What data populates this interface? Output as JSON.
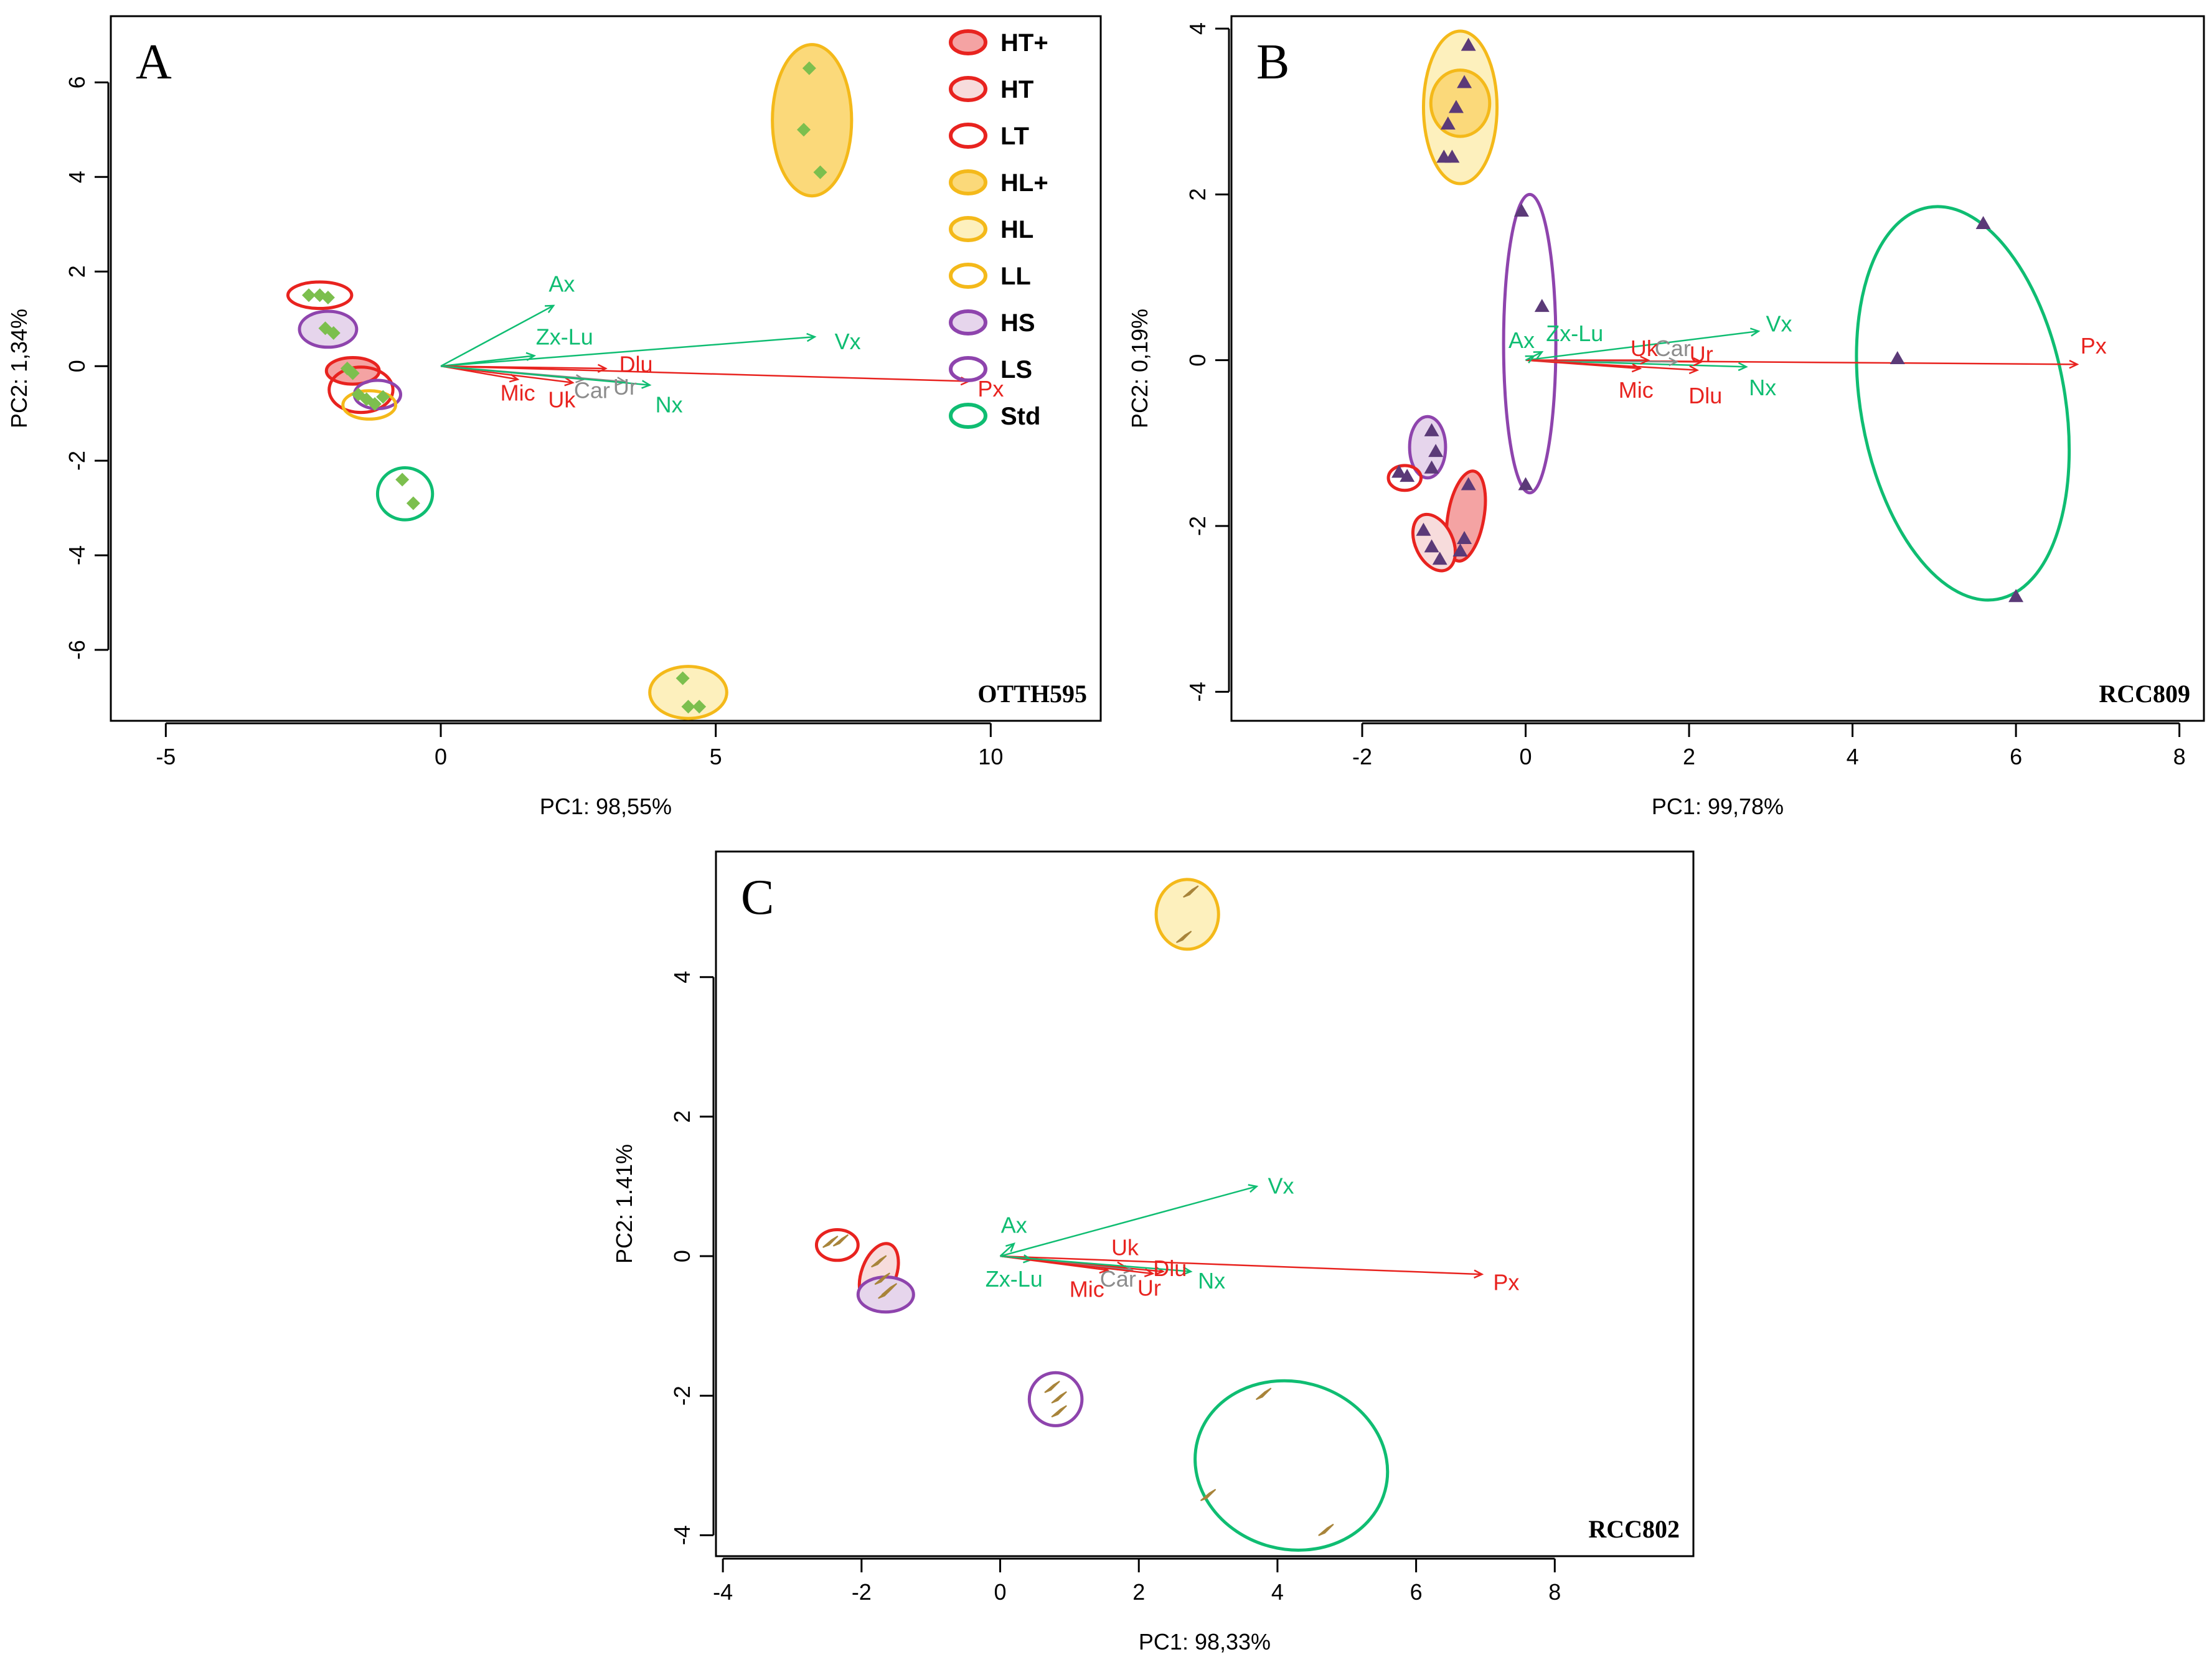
{
  "colors": {
    "red": "#e8231f",
    "red_fill": "#f4a3a3",
    "red_light": "#f7dcdc",
    "orange": "#f4b91a",
    "orange_fill": "#fbd97a",
    "orange_light": "#fdf0bd",
    "purple": "#8e44ad",
    "purple_light": "#e6d5ec",
    "green": "#0fbd72",
    "gray": "#8c8c8c",
    "axis": "#000000",
    "marker_a": "#7cbf4e",
    "marker_b": "#5b3a78",
    "marker_c": "#a8843a"
  },
  "legend": [
    {
      "label": "HT+",
      "stroke": "red",
      "fill": "red_fill"
    },
    {
      "label": "HT",
      "stroke": "red",
      "fill": "red_light"
    },
    {
      "label": "LT",
      "stroke": "red",
      "fill": "none"
    },
    {
      "label": "HL+",
      "stroke": "orange",
      "fill": "orange_fill"
    },
    {
      "label": "HL",
      "stroke": "orange",
      "fill": "orange_light"
    },
    {
      "label": "LL",
      "stroke": "orange",
      "fill": "none"
    },
    {
      "label": "HS",
      "stroke": "purple",
      "fill": "purple_light"
    },
    {
      "label": "LS",
      "stroke": "purple",
      "fill": "none"
    },
    {
      "label": "Std",
      "stroke": "green",
      "fill": "none"
    }
  ],
  "chart_data": [
    {
      "type": "scatter",
      "panel": "A",
      "strain": "OTTH595",
      "xlabel": "PC1: 98,55%",
      "ylabel": "PC2: 1,34%",
      "xlim": [
        -6,
        12
      ],
      "ylim": [
        -7.5,
        7.4
      ],
      "xticks": [
        -5,
        0,
        5,
        10
      ],
      "yticks": [
        -6,
        -4,
        -2,
        0,
        2,
        4,
        6
      ],
      "marker": "diamond",
      "marker_color": "marker_a",
      "points": [
        [
          6.7,
          6.3
        ],
        [
          6.6,
          5.0
        ],
        [
          6.9,
          4.1
        ],
        [
          -2.4,
          1.5
        ],
        [
          -2.2,
          1.5
        ],
        [
          -2.05,
          1.45
        ],
        [
          -2.1,
          0.8
        ],
        [
          -1.95,
          0.7
        ],
        [
          -1.7,
          -0.05
        ],
        [
          -1.6,
          -0.15
        ],
        [
          -1.5,
          -0.6
        ],
        [
          -1.35,
          -0.7
        ],
        [
          -1.2,
          -0.8
        ],
        [
          -1.05,
          -0.65
        ],
        [
          -0.7,
          -2.4
        ],
        [
          -0.5,
          -2.9
        ],
        [
          4.4,
          -6.6
        ],
        [
          4.5,
          -7.2
        ],
        [
          4.7,
          -7.2
        ]
      ],
      "ellipses": [
        {
          "group": "HL+",
          "cx": 6.75,
          "cy": 5.2,
          "rx": 0.72,
          "ry": 1.6,
          "angle": 0
        },
        {
          "group": "LT",
          "cx": -2.2,
          "cy": 1.5,
          "rx": 0.58,
          "ry": 0.28,
          "angle": 0
        },
        {
          "group": "HS",
          "cx": -2.05,
          "cy": 0.78,
          "rx": 0.52,
          "ry": 0.38,
          "angle": 0
        },
        {
          "group": "HT+",
          "cx": -1.6,
          "cy": -0.1,
          "rx": 0.48,
          "ry": 0.28,
          "angle": 0
        },
        {
          "group": "LT",
          "cx": -1.45,
          "cy": -0.5,
          "rx": 0.58,
          "ry": 0.48,
          "angle": 0
        },
        {
          "group": "LS",
          "cx": -1.15,
          "cy": -0.6,
          "rx": 0.42,
          "ry": 0.3,
          "angle": 0
        },
        {
          "group": "LL",
          "cx": -1.3,
          "cy": -0.82,
          "rx": 0.48,
          "ry": 0.3,
          "angle": 0
        },
        {
          "group": "Std",
          "cx": -0.65,
          "cy": -2.7,
          "rx": 0.5,
          "ry": 0.55,
          "angle": 0
        },
        {
          "group": "HL",
          "cx": 4.5,
          "cy": -6.9,
          "rx": 0.7,
          "ry": 0.55,
          "angle": 0
        }
      ],
      "loadings": [
        {
          "label": "Px",
          "x": 9.6,
          "y": -0.32,
          "color": "red",
          "lx": 10.0,
          "ly": -0.52
        },
        {
          "label": "Vx",
          "x": 6.8,
          "y": 0.62,
          "color": "green",
          "lx": 7.4,
          "ly": 0.48
        },
        {
          "label": "Ax",
          "x": 2.05,
          "y": 1.28,
          "color": "green",
          "lx": 2.2,
          "ly": 1.7
        },
        {
          "label": "Zx-Lu",
          "x": 1.7,
          "y": 0.22,
          "color": "green",
          "lx": 2.25,
          "ly": 0.58
        },
        {
          "label": "Dlu",
          "x": 3.0,
          "y": -0.05,
          "color": "red",
          "lx": 3.55,
          "ly": 0.0
        },
        {
          "label": "Mic",
          "x": 1.4,
          "y": -0.28,
          "color": "red",
          "lx": 1.4,
          "ly": -0.6
        },
        {
          "label": "Uk",
          "x": 2.4,
          "y": -0.35,
          "color": "red",
          "lx": 2.2,
          "ly": -0.75
        },
        {
          "label": "Car",
          "x": 2.6,
          "y": -0.28,
          "color": "gray",
          "lx": 2.75,
          "ly": -0.55
        },
        {
          "label": "Ur",
          "x": 3.35,
          "y": -0.33,
          "color": "gray",
          "lx": 3.35,
          "ly": -0.48
        },
        {
          "label": "Nx",
          "x": 3.8,
          "y": -0.4,
          "color": "green",
          "lx": 4.15,
          "ly": -0.85
        }
      ]
    },
    {
      "type": "scatter",
      "panel": "B",
      "strain": "RCC809",
      "xlabel": "PC1: 99,78%",
      "ylabel": "PC2: 0,19%",
      "xlim": [
        -3.6,
        8.3
      ],
      "ylim": [
        -4.35,
        4.15
      ],
      "xticks": [
        -2,
        0,
        2,
        4,
        6,
        8
      ],
      "yticks": [
        -4,
        -2,
        0,
        2,
        4
      ],
      "marker": "triangle",
      "marker_color": "marker_b",
      "points": [
        [
          -0.7,
          3.8
        ],
        [
          -0.75,
          3.35
        ],
        [
          -0.85,
          3.05
        ],
        [
          -0.95,
          2.85
        ],
        [
          -0.9,
          2.45
        ],
        [
          -1.0,
          2.45
        ],
        [
          -0.05,
          1.8
        ],
        [
          0.2,
          0.65
        ],
        [
          5.6,
          1.65
        ],
        [
          4.55,
          0.02
        ],
        [
          6.0,
          -2.85
        ],
        [
          -1.15,
          -0.85
        ],
        [
          -1.1,
          -1.1
        ],
        [
          -1.15,
          -1.3
        ],
        [
          -1.55,
          -1.35
        ],
        [
          -1.45,
          -1.4
        ],
        [
          -0.7,
          -1.5
        ],
        [
          -0.75,
          -2.15
        ],
        [
          -0.8,
          -2.3
        ],
        [
          -1.25,
          -2.05
        ],
        [
          -1.15,
          -2.25
        ],
        [
          -1.05,
          -2.4
        ],
        [
          0.0,
          -1.5
        ]
      ],
      "ellipses": [
        {
          "group": "HL",
          "cx": -0.8,
          "cy": 3.05,
          "rx": 0.45,
          "ry": 0.92,
          "angle": 0
        },
        {
          "group": "HL+",
          "cx": -0.8,
          "cy": 3.1,
          "rx": 0.36,
          "ry": 0.4,
          "angle": 0
        },
        {
          "group": "LS",
          "cx": 0.05,
          "cy": 0.2,
          "rx": 0.32,
          "ry": 1.8,
          "angle": 0
        },
        {
          "group": "Std",
          "cx": 5.35,
          "cy": -0.52,
          "rx": 1.25,
          "ry": 2.4,
          "angle": -10
        },
        {
          "group": "HS",
          "cx": -1.2,
          "cy": -1.05,
          "rx": 0.22,
          "ry": 0.37,
          "angle": 0
        },
        {
          "group": "LT",
          "cx": -1.48,
          "cy": -1.42,
          "rx": 0.2,
          "ry": 0.15,
          "angle": 0
        },
        {
          "group": "HT+",
          "cx": -0.73,
          "cy": -1.88,
          "rx": 0.22,
          "ry": 0.55,
          "angle": 10
        },
        {
          "group": "HT",
          "cx": -1.12,
          "cy": -2.2,
          "rx": 0.23,
          "ry": 0.36,
          "angle": -25
        }
      ],
      "loadings": [
        {
          "label": "Px",
          "x": 6.75,
          "y": -0.05,
          "color": "red",
          "lx": 6.95,
          "ly": 0.15
        },
        {
          "label": "Vx",
          "x": 2.85,
          "y": 0.35,
          "color": "green",
          "lx": 3.1,
          "ly": 0.42
        },
        {
          "label": "Nx",
          "x": 2.7,
          "y": -0.08,
          "color": "green",
          "lx": 2.9,
          "ly": -0.35
        },
        {
          "label": "Dlu",
          "x": 2.1,
          "y": -0.12,
          "color": "red",
          "lx": 2.2,
          "ly": -0.45
        },
        {
          "label": "Mic",
          "x": 1.4,
          "y": -0.1,
          "color": "red",
          "lx": 1.35,
          "ly": -0.38
        },
        {
          "label": "Ur",
          "x": 2.15,
          "y": -0.02,
          "color": "red",
          "lx": 2.15,
          "ly": 0.05
        },
        {
          "label": "Car",
          "x": 1.85,
          "y": -0.02,
          "color": "gray",
          "lx": 1.8,
          "ly": 0.12
        },
        {
          "label": "Uk",
          "x": 1.5,
          "y": 0.0,
          "color": "red",
          "lx": 1.45,
          "ly": 0.12
        },
        {
          "label": "Zx-Lu",
          "x": 0.2,
          "y": 0.1,
          "color": "green",
          "lx": 0.6,
          "ly": 0.3
        },
        {
          "label": "Ax",
          "x": 0.1,
          "y": 0.05,
          "color": "green",
          "lx": -0.05,
          "ly": 0.22
        }
      ]
    },
    {
      "type": "scatter",
      "panel": "C",
      "strain": "RCC802",
      "xlabel": "PC1: 98,33%",
      "ylabel": "PC2: 1.41%",
      "xlim": [
        -4.1,
        10.0
      ],
      "ylim": [
        -4.3,
        5.8
      ],
      "xticks": [
        -4,
        -2,
        0,
        2,
        4,
        6,
        8
      ],
      "yticks": [
        -4,
        -2,
        0,
        2,
        4
      ],
      "marker": "tick",
      "marker_color": "marker_c",
      "points": [
        [
          2.75,
          5.2
        ],
        [
          2.65,
          4.55
        ],
        [
          -2.45,
          0.18
        ],
        [
          -2.3,
          0.2
        ],
        [
          -1.75,
          -0.1
        ],
        [
          -1.7,
          -0.35
        ],
        [
          -1.65,
          -0.55
        ],
        [
          -1.6,
          -0.5
        ],
        [
          0.75,
          -1.9
        ],
        [
          0.85,
          -2.05
        ],
        [
          0.85,
          -2.25
        ],
        [
          3.8,
          -2.0
        ],
        [
          3.0,
          -3.45
        ],
        [
          4.7,
          -3.95
        ]
      ],
      "ellipses": [
        {
          "group": "HL",
          "cx": 2.7,
          "cy": 4.9,
          "rx": 0.45,
          "ry": 0.5,
          "angle": 0
        },
        {
          "group": "LT",
          "cx": -2.35,
          "cy": 0.16,
          "rx": 0.3,
          "ry": 0.22,
          "angle": 0
        },
        {
          "group": "HT",
          "cx": -1.75,
          "cy": -0.25,
          "rx": 0.25,
          "ry": 0.45,
          "angle": 20
        },
        {
          "group": "HS",
          "cx": -1.65,
          "cy": -0.55,
          "rx": 0.4,
          "ry": 0.25,
          "angle": 0
        },
        {
          "group": "LS",
          "cx": 0.8,
          "cy": -2.05,
          "rx": 0.38,
          "ry": 0.38,
          "angle": 0
        },
        {
          "group": "Std",
          "cx": 4.2,
          "cy": -3.0,
          "rx": 1.4,
          "ry": 1.2,
          "angle": 15
        }
      ],
      "loadings": [
        {
          "label": "Px",
          "x": 6.95,
          "y": -0.26,
          "color": "red",
          "lx": 7.3,
          "ly": -0.4
        },
        {
          "label": "Vx",
          "x": 3.7,
          "y": 1.0,
          "color": "green",
          "lx": 4.05,
          "ly": 0.98
        },
        {
          "label": "Ax",
          "x": 0.2,
          "y": 0.18,
          "color": "green",
          "lx": 0.2,
          "ly": 0.42
        },
        {
          "label": "Zx-Lu",
          "x": 0.45,
          "y": -0.05,
          "color": "green",
          "lx": 0.2,
          "ly": -0.35
        },
        {
          "label": "Uk",
          "x": 1.8,
          "y": -0.15,
          "color": "red",
          "lx": 1.8,
          "ly": 0.1
        },
        {
          "label": "Dlu",
          "x": 2.35,
          "y": -0.22,
          "color": "red",
          "lx": 2.45,
          "ly": -0.2
        },
        {
          "label": "Mic",
          "x": 1.55,
          "y": -0.2,
          "color": "red",
          "lx": 1.25,
          "ly": -0.5
        },
        {
          "label": "Car",
          "x": 1.9,
          "y": -0.2,
          "color": "gray",
          "lx": 1.7,
          "ly": -0.35
        },
        {
          "label": "Ur",
          "x": 2.2,
          "y": -0.25,
          "color": "red",
          "lx": 2.15,
          "ly": -0.48
        },
        {
          "label": "Nx",
          "x": 2.75,
          "y": -0.22,
          "color": "green",
          "lx": 3.05,
          "ly": -0.38
        }
      ]
    }
  ]
}
